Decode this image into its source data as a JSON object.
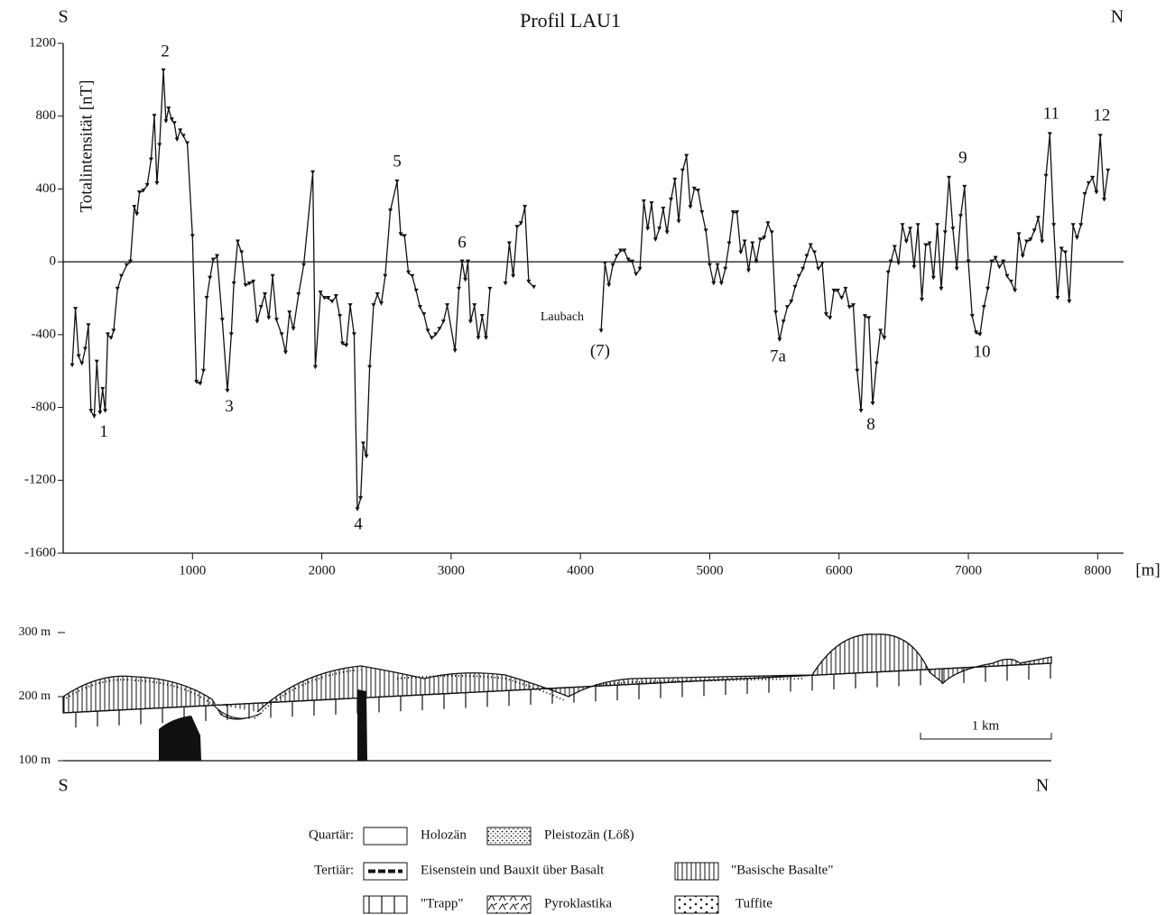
{
  "chart_data": {
    "type": "line",
    "title": "Profil LAU1",
    "left_label": "S",
    "right_label": "N",
    "y_label": "Totalintensität [nT]",
    "x_label": "[m]",
    "color": "#111111",
    "xlim": [
      0,
      8200
    ],
    "xticks": [
      1000,
      2000,
      3000,
      4000,
      5000,
      6000,
      7000,
      8000
    ],
    "ylim": [
      -1600,
      1200
    ],
    "yticks": [
      -1600,
      -1200,
      -800,
      -400,
      0,
      400,
      800,
      1200
    ],
    "x": [
      70,
      95,
      120,
      145,
      170,
      195,
      215,
      240,
      260,
      285,
      305,
      325,
      345,
      370,
      390,
      420,
      450,
      490,
      520,
      550,
      570,
      590,
      620,
      650,
      680,
      705,
      725,
      745,
      775,
      795,
      815,
      840,
      860,
      880,
      905,
      930,
      960,
      1000,
      1030,
      1060,
      1085,
      1110,
      1135,
      1160,
      1190,
      1230,
      1270,
      1300,
      1320,
      1350,
      1380,
      1410,
      1440,
      1470,
      1500,
      1530,
      1560,
      1590,
      1620,
      1650,
      1690,
      1720,
      1750,
      1780,
      1820,
      1860,
      1930,
      1950,
      1990,
      2020,
      2050,
      2080,
      2110,
      2140,
      2160,
      2190,
      2220,
      2250,
      2275,
      2300,
      2320,
      2345,
      2370,
      2400,
      2430,
      2460,
      2490,
      2530,
      2582,
      2610,
      2640,
      2670,
      2700,
      2730,
      2760,
      2790,
      2820,
      2850,
      2880,
      2910,
      2940,
      2970,
      3030,
      3060,
      3085,
      3110,
      3130,
      3150,
      3180,
      3210,
      3240,
      3270,
      3300,
      3360,
      3420,
      3450,
      3480,
      3510,
      3540,
      3570,
      3600,
      3640,
      3900,
      4160,
      4190,
      4220,
      4250,
      4280,
      4310,
      4340,
      4370,
      4400,
      4430,
      4460,
      4490,
      4520,
      4550,
      4580,
      4610,
      4640,
      4670,
      4700,
      4730,
      4760,
      4790,
      4820,
      4850,
      4880,
      4910,
      4940,
      4970,
      5000,
      5030,
      5060,
      5090,
      5120,
      5150,
      5180,
      5210,
      5240,
      5270,
      5300,
      5330,
      5360,
      5390,
      5420,
      5450,
      5480,
      5510,
      5540,
      5570,
      5600,
      5630,
      5660,
      5690,
      5720,
      5750,
      5780,
      5810,
      5840,
      5870,
      5900,
      5930,
      5960,
      5990,
      6020,
      6050,
      6080,
      6110,
      6140,
      6170,
      6200,
      6230,
      6260,
      6290,
      6320,
      6350,
      6380,
      6400,
      6430,
      6460,
      6490,
      6520,
      6550,
      6580,
      6610,
      6640,
      6670,
      6700,
      6730,
      6760,
      6790,
      6820,
      6850,
      6880,
      6910,
      6940,
      6970,
      7000,
      7030,
      7060,
      7090,
      7120,
      7150,
      7180,
      7210,
      7240,
      7270,
      7300,
      7330,
      7360,
      7390,
      7420,
      7450,
      7480,
      7510,
      7540,
      7570,
      7600,
      7630,
      7660,
      7690,
      7720,
      7750,
      7780,
      7810,
      7840,
      7870,
      7900,
      7930,
      7960,
      7990,
      8020,
      8050,
      8080
    ],
    "values": [
      -570,
      -260,
      -520,
      -560,
      -480,
      -350,
      -820,
      -850,
      -550,
      -830,
      -700,
      -820,
      -400,
      -420,
      -380,
      -150,
      -80,
      -20,
      0,
      300,
      260,
      380,
      390,
      420,
      560,
      800,
      430,
      640,
      1050,
      770,
      840,
      780,
      760,
      670,
      720,
      690,
      650,
      140,
      -660,
      -670,
      -600,
      -200,
      -90,
      10,
      30,
      -320,
      -710,
      -400,
      -120,
      110,
      50,
      -130,
      -120,
      -110,
      -330,
      -250,
      -180,
      -310,
      -80,
      -320,
      -400,
      -500,
      -280,
      -370,
      -180,
      -20,
      490,
      -580,
      -170,
      -200,
      -200,
      -220,
      -190,
      -300,
      -450,
      -460,
      -240,
      -400,
      -1360,
      -1300,
      -1000,
      -1070,
      -580,
      -240,
      -180,
      -230,
      -80,
      280,
      440,
      150,
      140,
      -60,
      -80,
      -160,
      -250,
      -290,
      -380,
      -420,
      -400,
      -370,
      -330,
      -240,
      -490,
      -150,
      0,
      -100,
      0,
      -330,
      -240,
      -420,
      -300,
      -420,
      -150,
      null,
      -120,
      100,
      -80,
      190,
      210,
      300,
      -110,
      -140,
      null,
      -380,
      -10,
      -130,
      -20,
      30,
      60,
      60,
      10,
      0,
      -70,
      -40,
      330,
      180,
      320,
      120,
      180,
      290,
      160,
      340,
      450,
      220,
      500,
      580,
      300,
      400,
      390,
      270,
      170,
      -20,
      -120,
      -20,
      -120,
      -40,
      100,
      270,
      270,
      50,
      110,
      -50,
      100,
      0,
      120,
      130,
      210,
      160,
      -280,
      -430,
      -330,
      -250,
      -220,
      -140,
      -80,
      -40,
      30,
      90,
      50,
      -40,
      -10,
      -290,
      -310,
      -160,
      -160,
      -200,
      -150,
      -250,
      -240,
      -600,
      -820,
      -300,
      -310,
      -780,
      -560,
      -380,
      -420,
      -60,
      0,
      80,
      -10,
      200,
      110,
      180,
      -30,
      200,
      -210,
      90,
      100,
      -90,
      200,
      -150,
      160,
      460,
      180,
      -40,
      250,
      410,
      0,
      -300,
      -390,
      -400,
      -250,
      -150,
      0,
      20,
      -30,
      0,
      -80,
      -110,
      -160,
      150,
      30,
      110,
      120,
      170,
      240,
      110,
      470,
      700,
      200,
      -200,
      70,
      50,
      -220,
      200,
      130,
      200,
      370,
      430,
      460,
      380,
      690,
      340,
      500
    ],
    "annotations": [
      {
        "text": "1",
        "x": 314,
        "y": -940
      },
      {
        "text": "2",
        "x": 789,
        "y": 1150
      },
      {
        "text": "3",
        "x": 1284,
        "y": -800
      },
      {
        "text": "4",
        "x": 2282,
        "y": -1446
      },
      {
        "text": "5",
        "x": 2582,
        "y": 546
      },
      {
        "text": "6",
        "x": 3085,
        "y": 100
      },
      {
        "text": "(7)",
        "x": 4152,
        "y": -495
      },
      {
        "text": "7a",
        "x": 5527,
        "y": -525
      },
      {
        "text": "8",
        "x": 6246,
        "y": -900
      },
      {
        "text": "9",
        "x": 6957,
        "y": 566
      },
      {
        "text": "10",
        "x": 7104,
        "y": -500
      },
      {
        "text": "11",
        "x": 7641,
        "y": 809
      },
      {
        "text": "12",
        "x": 8032,
        "y": 799
      },
      {
        "text": "Laubach",
        "x": 3859,
        "y": -306
      }
    ]
  },
  "section": {
    "left_label": "S",
    "right_label": "N",
    "scale_label": "1 km",
    "yticks": [
      {
        "value": 300,
        "label": "300 m"
      },
      {
        "value": 200,
        "label": "200 m"
      },
      {
        "value": 100,
        "label": "100 m"
      }
    ]
  },
  "legend": {
    "groups": [
      "Quartär:",
      "Tertiär:"
    ],
    "items": [
      "Holozän",
      "Pleistozän (Löß)",
      "Eisenstein und Bauxit über Basalt",
      "\"Basische Basalte\"",
      "\"Trapp\"",
      "Pyroklastika",
      "Tuffite"
    ]
  }
}
